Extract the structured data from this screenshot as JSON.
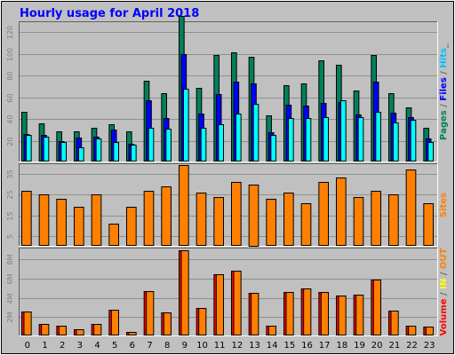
{
  "chart_data": {
    "type": "bar",
    "title": "Hourly usage for April 2018",
    "categories": [
      "0",
      "1",
      "2",
      "3",
      "4",
      "5",
      "6",
      "7",
      "8",
      "9",
      "10",
      "11",
      "12",
      "13",
      "14",
      "15",
      "16",
      "17",
      "18",
      "19",
      "20",
      "21",
      "22",
      "23"
    ],
    "panels": [
      {
        "name": "pages-files-hits",
        "right_label": [
          {
            "text": "Pages",
            "color": "#00805c"
          },
          {
            "text": " / ",
            "color": "#666666"
          },
          {
            "text": "Files",
            "color": "#0000ff"
          },
          {
            "text": " / ",
            "color": "#666666"
          },
          {
            "text": "Hits",
            "color": "#00c0ff"
          },
          {
            "text": "_",
            "color": "#666666"
          }
        ],
        "ylim": [
          0,
          130
        ],
        "yticks": [
          {
            "v": 20,
            "label": "20"
          },
          {
            "v": 40,
            "label": "40"
          },
          {
            "v": 60,
            "label": "60"
          },
          {
            "v": 80,
            "label": "80"
          },
          {
            "v": 100,
            "label": "100"
          },
          {
            "v": 120,
            "label": "120"
          }
        ],
        "series": [
          {
            "name": "Pages",
            "color": "#00805c",
            "values": [
              47,
              36,
              29,
              29,
              32,
              35,
              29,
              75,
              64,
              135,
              69,
              99,
              101,
              97,
              43,
              71,
              73,
              94,
              90,
              66,
              99,
              64,
              51,
              32
            ]
          },
          {
            "name": "Files",
            "color": "#0000ff",
            "values": [
              26,
              25,
              20,
              23,
              24,
              30,
              17,
              57,
              41,
              100,
              45,
              63,
              74,
              73,
              28,
              53,
              52,
              55,
              56,
              44,
              74,
              46,
              42,
              22
            ]
          },
          {
            "name": "Hits",
            "color": "#00ffff",
            "values": [
              25,
              24,
              19,
              14,
              22,
              19,
              16,
              32,
              31,
              68,
              32,
              35,
              45,
              54,
              25,
              41,
              41,
              42,
              57,
              42,
              47,
              37,
              39,
              19
            ]
          }
        ]
      },
      {
        "name": "sites",
        "right_label": [
          {
            "text": "Sites",
            "color": "#ff8000"
          }
        ],
        "ylim": [
          0,
          40
        ],
        "yticks": [
          {
            "v": 5,
            "label": "5"
          },
          {
            "v": 15,
            "label": "15"
          },
          {
            "v": 25,
            "label": "25"
          },
          {
            "v": 35,
            "label": "35"
          }
        ],
        "series": [
          {
            "name": "Sites",
            "color": "#ff8000",
            "values": [
              27,
              25,
              23,
              19,
              25,
              11,
              19,
              27,
              29,
              39,
              26,
              24,
              31,
              30,
              23,
              26,
              21,
              31,
              33,
              24,
              27,
              25,
              37,
              21
            ]
          }
        ]
      },
      {
        "name": "volume-in-out",
        "right_label": [
          {
            "text": "Volume",
            "color": "#ff0000"
          },
          {
            "text": " / ",
            "color": "#666666"
          },
          {
            "text": "IN",
            "color": "#ffff00"
          },
          {
            "text": " / ",
            "color": "#666666"
          },
          {
            "text": "OUT",
            "color": "#ff8000"
          }
        ],
        "ylim": [
          0,
          9.2
        ],
        "yticks": [
          {
            "v": 2,
            "label": "2M"
          },
          {
            "v": 4,
            "label": "4M"
          },
          {
            "v": 6,
            "label": "6M"
          },
          {
            "v": 8,
            "label": "8M"
          }
        ],
        "series": [
          {
            "name": "Volume",
            "color": "#ff0000",
            "values": [
              2.6,
              1.3,
              1.1,
              0.7,
              1.3,
              2.8,
              0.5,
              4.7,
              2.5,
              8.9,
              2.9,
              6.4,
              6.8,
              4.5,
              1.1,
              4.6,
              5.0,
              4.6,
              4.2,
              4.3,
              5.9,
              2.7,
              1.1,
              1.0
            ]
          },
          {
            "name": "OUT",
            "color": "#ff8000",
            "values": [
              2.6,
              1.3,
              1.1,
              0.7,
              1.3,
              2.8,
              0.5,
              4.7,
              2.5,
              8.9,
              2.9,
              6.4,
              6.8,
              4.5,
              1.1,
              4.6,
              5.0,
              4.6,
              4.2,
              4.3,
              5.9,
              2.7,
              1.1,
              1.0
            ]
          }
        ]
      }
    ]
  }
}
